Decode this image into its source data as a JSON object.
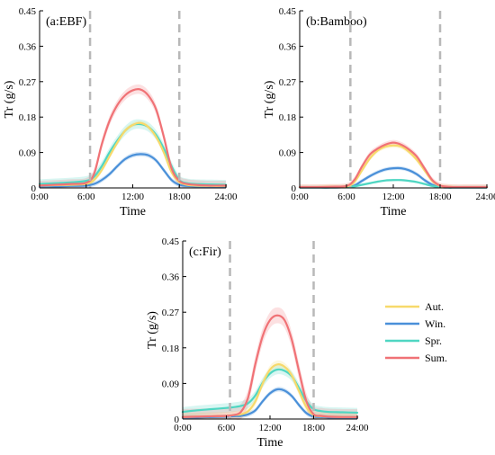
{
  "chart_data": [
    {
      "type": "line",
      "title": "(a:EBF)",
      "xlabel": "Time",
      "ylabel": "Tr (g/s)",
      "xlim": [
        0,
        24
      ],
      "ylim": [
        0,
        0.45
      ],
      "xticks": [
        0,
        6,
        12,
        18,
        24
      ],
      "xtick_labels": [
        "0:00",
        "6:00",
        "12:00",
        "18:00",
        "24:00"
      ],
      "yticks": [
        0,
        0.09,
        0.18,
        0.27,
        0.36,
        0.45
      ],
      "ytick_labels": [
        "0",
        "0.09",
        "0.18",
        "0.27",
        "0.36",
        "0.45"
      ],
      "vlines": [
        6.5,
        18
      ],
      "x": [
        0,
        2,
        4,
        6,
        7,
        8,
        9,
        10,
        11,
        12,
        13,
        14,
        15,
        16,
        17,
        18,
        19,
        20,
        22,
        24
      ],
      "series": [
        {
          "key": "aut",
          "values": [
            0.006,
            0.007,
            0.008,
            0.01,
            0.02,
            0.045,
            0.08,
            0.115,
            0.145,
            0.16,
            0.165,
            0.155,
            0.13,
            0.09,
            0.04,
            0.015,
            0.008,
            0.006,
            0.005,
            0.005
          ],
          "band": 0.006
        },
        {
          "key": "win",
          "values": [
            0.004,
            0.004,
            0.005,
            0.006,
            0.01,
            0.02,
            0.035,
            0.055,
            0.073,
            0.083,
            0.086,
            0.083,
            0.07,
            0.045,
            0.02,
            0.008,
            0.005,
            0.004,
            0.004,
            0.004
          ],
          "band": 0.006
        },
        {
          "key": "spr",
          "values": [
            0.01,
            0.012,
            0.014,
            0.018,
            0.028,
            0.055,
            0.09,
            0.12,
            0.145,
            0.16,
            0.162,
            0.155,
            0.135,
            0.1,
            0.055,
            0.02,
            0.012,
            0.01,
            0.009,
            0.008
          ],
          "band": 0.012
        },
        {
          "key": "sum",
          "values": [
            0.006,
            0.008,
            0.01,
            0.013,
            0.035,
            0.11,
            0.17,
            0.21,
            0.235,
            0.248,
            0.25,
            0.235,
            0.2,
            0.13,
            0.05,
            0.018,
            0.01,
            0.008,
            0.006,
            0.006
          ],
          "band": 0.012
        }
      ]
    },
    {
      "type": "line",
      "title": "(b:Bamboo)",
      "xlabel": "Time",
      "ylabel": "Tr (g/s)",
      "xlim": [
        0,
        24
      ],
      "ylim": [
        0,
        0.45
      ],
      "xticks": [
        0,
        6,
        12,
        18,
        24
      ],
      "xtick_labels": [
        "0:00",
        "6:00",
        "12:00",
        "18:00",
        "24:00"
      ],
      "yticks": [
        0,
        0.09,
        0.18,
        0.27,
        0.36,
        0.45
      ],
      "ytick_labels": [
        "0",
        "0.09",
        "0.18",
        "0.27",
        "0.36",
        "0.45"
      ],
      "vlines": [
        6.5,
        18
      ],
      "x": [
        0,
        2,
        4,
        6,
        7,
        8,
        9,
        10,
        11,
        12,
        13,
        14,
        15,
        16,
        17,
        18,
        19,
        20,
        22,
        24
      ],
      "series": [
        {
          "key": "aut",
          "values": [
            0.002,
            0.002,
            0.003,
            0.004,
            0.015,
            0.045,
            0.075,
            0.095,
            0.105,
            0.108,
            0.105,
            0.092,
            0.072,
            0.045,
            0.018,
            0.005,
            0.003,
            0.002,
            0.002,
            0.002
          ],
          "band": 0.006
        },
        {
          "key": "win",
          "values": [
            0.001,
            0.001,
            0.001,
            0.002,
            0.006,
            0.018,
            0.03,
            0.04,
            0.047,
            0.05,
            0.05,
            0.045,
            0.035,
            0.02,
            0.008,
            0.002,
            0.001,
            0.001,
            0.001,
            0.001
          ],
          "band": 0.005
        },
        {
          "key": "spr",
          "values": [
            0.001,
            0.001,
            0.001,
            0.002,
            0.004,
            0.008,
            0.012,
            0.016,
            0.019,
            0.02,
            0.02,
            0.018,
            0.015,
            0.01,
            0.005,
            0.002,
            0.001,
            0.001,
            0.001,
            0.001
          ],
          "band": 0.003
        },
        {
          "key": "sum",
          "values": [
            0.002,
            0.002,
            0.003,
            0.005,
            0.02,
            0.055,
            0.085,
            0.1,
            0.11,
            0.115,
            0.11,
            0.098,
            0.08,
            0.05,
            0.02,
            0.006,
            0.003,
            0.002,
            0.002,
            0.002
          ],
          "band": 0.007
        }
      ]
    },
    {
      "type": "line",
      "title": "(c:Fir)",
      "xlabel": "Time",
      "ylabel": "Tr (g/s)",
      "xlim": [
        0,
        24
      ],
      "ylim": [
        0,
        0.45
      ],
      "xticks": [
        0,
        6,
        12,
        18,
        24
      ],
      "xtick_labels": [
        "0:00",
        "6:00",
        "12:00",
        "18:00",
        "24:00"
      ],
      "yticks": [
        0,
        0.09,
        0.18,
        0.27,
        0.36,
        0.45
      ],
      "ytick_labels": [
        "0",
        "0.09",
        "0.18",
        "0.27",
        "0.36",
        "0.45"
      ],
      "vlines": [
        6.5,
        18
      ],
      "x": [
        0,
        2,
        4,
        6,
        7,
        8,
        9,
        10,
        11,
        12,
        13,
        14,
        15,
        16,
        17,
        18,
        19,
        20,
        22,
        24
      ],
      "series": [
        {
          "key": "aut",
          "values": [
            0.005,
            0.006,
            0.007,
            0.008,
            0.01,
            0.012,
            0.02,
            0.045,
            0.09,
            0.125,
            0.138,
            0.132,
            0.11,
            0.07,
            0.03,
            0.01,
            0.007,
            0.006,
            0.005,
            0.005
          ],
          "band": 0.01
        },
        {
          "key": "win",
          "values": [
            0.004,
            0.004,
            0.005,
            0.006,
            0.007,
            0.008,
            0.012,
            0.022,
            0.045,
            0.065,
            0.075,
            0.072,
            0.058,
            0.035,
            0.015,
            0.006,
            0.005,
            0.004,
            0.004,
            0.004
          ],
          "band": 0.006
        },
        {
          "key": "spr",
          "values": [
            0.018,
            0.022,
            0.025,
            0.028,
            0.03,
            0.033,
            0.04,
            0.06,
            0.092,
            0.115,
            0.125,
            0.122,
            0.108,
            0.078,
            0.045,
            0.025,
            0.02,
            0.018,
            0.017,
            0.016
          ],
          "band": 0.012
        },
        {
          "key": "sum",
          "values": [
            0.005,
            0.006,
            0.007,
            0.008,
            0.01,
            0.018,
            0.055,
            0.14,
            0.21,
            0.25,
            0.262,
            0.25,
            0.2,
            0.12,
            0.045,
            0.012,
            0.008,
            0.006,
            0.005,
            0.005
          ],
          "band": 0.02
        }
      ]
    }
  ],
  "legend": {
    "placement": "right of panel c",
    "items": [
      {
        "key": "aut",
        "label": "Aut."
      },
      {
        "key": "win",
        "label": "Win."
      },
      {
        "key": "spr",
        "label": "Spr."
      },
      {
        "key": "sum",
        "label": "Sum."
      }
    ]
  },
  "colors": {
    "aut": "#f7d96b",
    "win": "#4a90d9",
    "spr": "#4fd6c2",
    "sum": "#f07276",
    "vline": "#b8b8b8"
  }
}
